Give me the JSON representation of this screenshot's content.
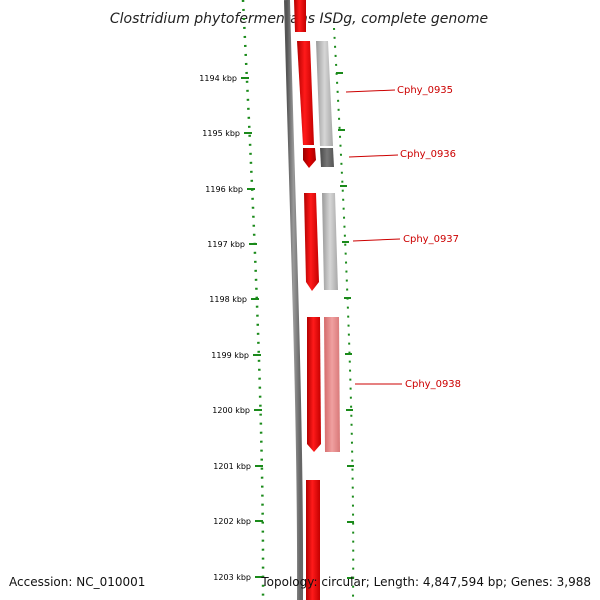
{
  "title": "Clostridium phytofermentans ISDg, complete genome",
  "scale_labels": [
    "1194 kbp",
    "1195 kbp",
    "1196 kbp",
    "1197 kbp",
    "1198 kbp",
    "1199 kbp",
    "1200 kbp",
    "1201 kbp",
    "1202 kbp",
    "1203 kbp"
  ],
  "genes": [
    {
      "label": "Cphy_0935"
    },
    {
      "label": "Cphy_0936"
    },
    {
      "label": "Cphy_0937"
    },
    {
      "label": "Cphy_0938"
    }
  ],
  "footer": {
    "accession": "Accession: NC_010001",
    "topology": "Topology: circular; Length: 4,847,594 bp; Genes: 3,988"
  },
  "colors": {
    "scale": "#1a8a1a",
    "backbone": "#777777",
    "cds": "#ee0000",
    "gene_label": "#cc0000"
  }
}
